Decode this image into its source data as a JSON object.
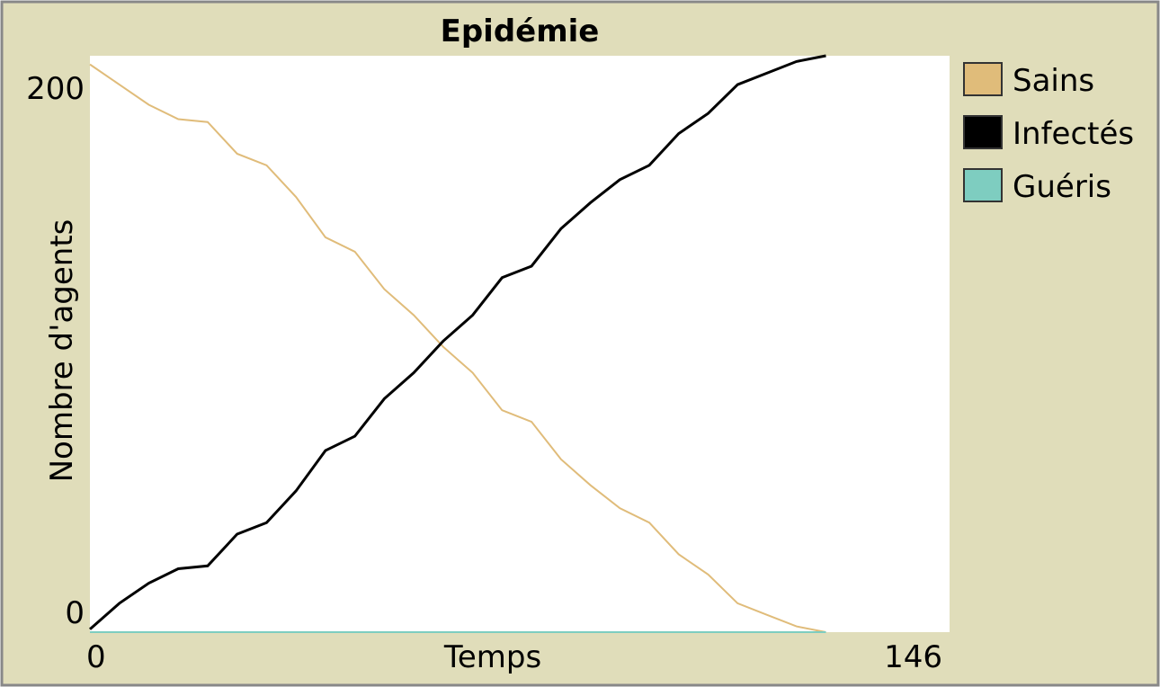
{
  "chart_data": {
    "type": "line",
    "title": "Epidémie",
    "x_label": "Temps",
    "y_label": "Nombre d'agents",
    "x": [
      0,
      5,
      10,
      15,
      20,
      25,
      30,
      35,
      40,
      45,
      50,
      55,
      60,
      65,
      70,
      75,
      80,
      85,
      90,
      95,
      100,
      105,
      110,
      115,
      120,
      125
    ],
    "series": [
      {
        "name": "Sains",
        "color": "#e0bc7a",
        "values": [
          197,
          190,
          183,
          178,
          177,
          166,
          162,
          151,
          137,
          132,
          119,
          110,
          99,
          90,
          77,
          73,
          60,
          51,
          43,
          38,
          27,
          20,
          10,
          6,
          2,
          0
        ]
      },
      {
        "name": "Infectés",
        "color": "#000000",
        "values": [
          1,
          10,
          17,
          22,
          23,
          34,
          38,
          49,
          63,
          68,
          81,
          90,
          101,
          110,
          123,
          127,
          140,
          149,
          157,
          162,
          173,
          180,
          190,
          194,
          198,
          200
        ]
      },
      {
        "name": "Guéris",
        "color": "#7ecdc0",
        "values": [
          0,
          0,
          0,
          0,
          0,
          0,
          0,
          0,
          0,
          0,
          0,
          0,
          0,
          0,
          0,
          0,
          0,
          0,
          0,
          0,
          0,
          0,
          0,
          0,
          0,
          0
        ]
      }
    ],
    "xlim": [
      0,
      146
    ],
    "xticks": [
      0,
      146
    ],
    "ylim": [
      0,
      200
    ],
    "yticks": [
      0,
      200
    ],
    "grid": false,
    "legend": "right"
  }
}
